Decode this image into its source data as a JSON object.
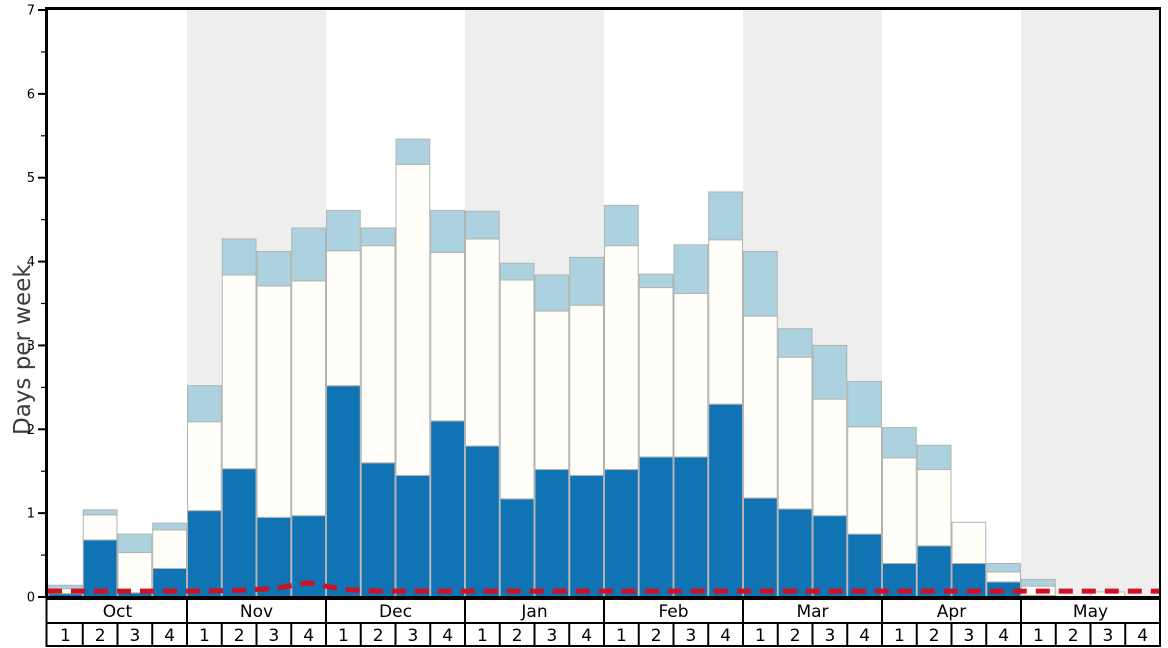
{
  "chart_data": {
    "type": "bar",
    "stacked": true,
    "title": "",
    "xlabel": "",
    "ylabel": "Days per week",
    "ylim": [
      0,
      7
    ],
    "y_ticks": [
      0,
      1,
      2,
      3,
      4,
      5,
      6,
      7
    ],
    "y_minor_tick_step": 0.5,
    "grid": "off",
    "legend": "none",
    "months": [
      "Oct",
      "Nov",
      "Dec",
      "Jan",
      "Feb",
      "Mar",
      "Apr",
      "May"
    ],
    "week_labels": [
      "1",
      "2",
      "3",
      "4"
    ],
    "banded_month_indices": [
      1,
      3,
      5,
      7
    ],
    "band_color": "#eeeeee",
    "bar_border_color": "#b3b3b3",
    "series": [
      {
        "name": "dark-blue-bottom-segment",
        "color": "#1073b4",
        "cumulative_top": [
          0.04,
          0.68,
          0.05,
          0.34,
          1.03,
          1.53,
          0.95,
          0.97,
          2.52,
          1.6,
          1.45,
          2.1,
          1.8,
          1.17,
          1.52,
          1.45,
          1.52,
          1.67,
          1.67,
          2.3,
          1.18,
          1.05,
          0.97,
          0.75,
          0.4,
          0.61,
          0.4,
          0.18,
          0.02,
          0.0,
          0.0,
          0.0
        ]
      },
      {
        "name": "white-middle-segment",
        "color": "#fffef8",
        "cumulative_top": [
          0.1,
          0.98,
          0.53,
          0.8,
          2.09,
          3.84,
          3.71,
          3.77,
          4.13,
          4.19,
          5.16,
          4.11,
          4.27,
          3.78,
          3.41,
          3.48,
          4.19,
          3.69,
          3.62,
          4.26,
          3.35,
          2.86,
          2.36,
          2.03,
          1.66,
          1.52,
          0.89,
          0.3,
          0.13,
          0.0,
          0.06,
          0.0
        ]
      },
      {
        "name": "light-blue-top-segment",
        "color": "#abd2de",
        "cumulative_top": [
          0.14,
          1.04,
          0.75,
          0.88,
          2.52,
          4.27,
          4.12,
          4.4,
          4.61,
          4.4,
          5.46,
          4.61,
          4.6,
          3.98,
          3.84,
          4.05,
          4.67,
          3.85,
          4.2,
          4.83,
          4.12,
          3.2,
          3.0,
          2.57,
          2.02,
          1.81,
          0.89,
          0.4,
          0.21,
          0.0,
          0.06,
          0.0
        ]
      }
    ],
    "red_dashed_line": {
      "name": "red-dashed-line",
      "color": "#cf1124",
      "values_per_week": [
        0.07,
        0.07,
        0.07,
        0.07,
        0.07,
        0.08,
        0.1,
        0.17,
        0.09,
        0.07,
        0.07,
        0.07,
        0.07,
        0.07,
        0.07,
        0.07,
        0.07,
        0.07,
        0.07,
        0.07,
        0.07,
        0.07,
        0.07,
        0.07,
        0.07,
        0.07,
        0.07,
        0.07,
        0.07,
        0.07,
        0.07,
        0.07
      ]
    }
  }
}
